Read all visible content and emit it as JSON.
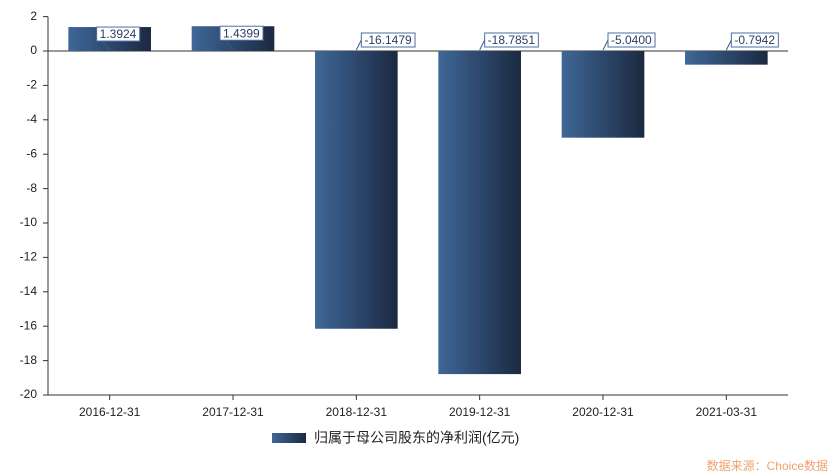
{
  "chart_data": {
    "type": "bar",
    "categories": [
      "2016-12-31",
      "2017-12-31",
      "2018-12-31",
      "2019-12-31",
      "2020-12-31",
      "2021-03-31"
    ],
    "series": [
      {
        "name": "归属于母公司股东的净利润(亿元)",
        "colors": [
          "#3f6798",
          "#1b2940"
        ],
        "values": [
          1.3924,
          1.4399,
          -16.1479,
          -18.7851,
          -5.04,
          -0.7942
        ],
        "value_labels": [
          "1.3924",
          "1.4399",
          "-16.1479",
          "-18.7851",
          "-5.0400",
          "-0.7942"
        ]
      }
    ],
    "ylim": [
      -20,
      2
    ],
    "yticks": [
      -20,
      -18,
      -16,
      -14,
      -12,
      -10,
      -8,
      -6,
      -4,
      -2,
      0,
      2
    ],
    "source": "数据来源：Choice数据"
  }
}
